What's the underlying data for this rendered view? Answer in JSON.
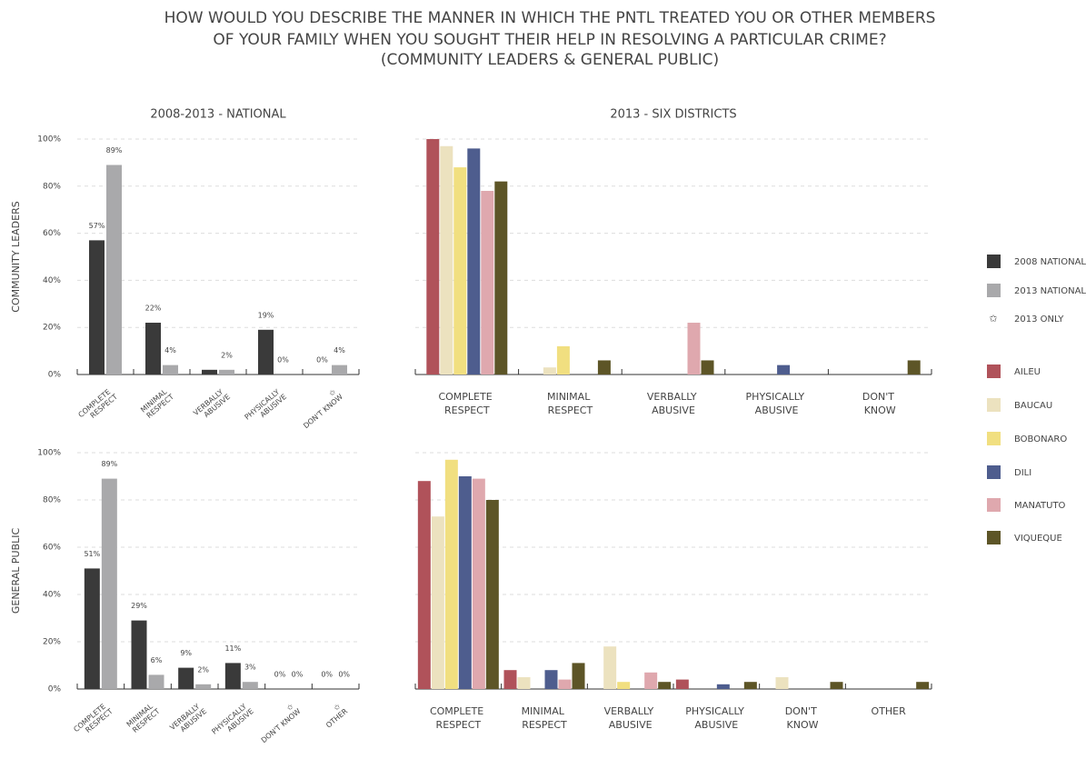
{
  "title": [
    "HOW WOULD YOU DESCRIBE THE MANNER IN WHICH THE PNTL TREATED YOU OR OTHER MEMBERS",
    "OF YOUR FAMILY WHEN YOU SOUGHT THEIR HELP IN RESOLVING A PARTICULAR CRIME?",
    "(COMMUNITY LEADERS & GENERAL PUBLIC)"
  ],
  "note_symbol": "✩",
  "note": "2013 ONLY",
  "chart_data": [
    {
      "type": "bar",
      "title": "2008-2013 - NATIONAL",
      "ylabel": "COMMUNITY LEADERS",
      "ytick_labels": true,
      "categories": [
        "COMPLETE RESPECT",
        "MINIMAL RESPECT",
        "VERBALLY ABUSIVE",
        "PHYSICALLY ABUSIVE",
        "✩ DON'T KNOW"
      ],
      "series": [
        {
          "name": "2008 NATIONAL",
          "color": "#3a3a3a",
          "values": [
            57,
            22,
            2,
            19,
            0
          ],
          "value_labels": [
            "57%",
            "22%",
            null,
            "19%",
            "0%"
          ]
        },
        {
          "name": "2013 NATIONAL",
          "color": "#a9a9ab",
          "values": [
            89,
            4,
            2,
            0,
            4
          ],
          "value_labels": [
            "89%",
            "4%",
            "2%",
            "0%",
            "4%"
          ]
        }
      ],
      "ylim": [
        0,
        100
      ],
      "yticks": [
        {
          "value": 0,
          "label": "0%"
        },
        {
          "value": 20,
          "label": "20%"
        },
        {
          "value": 40,
          "label": "40%"
        },
        {
          "value": 60,
          "label": "60%"
        },
        {
          "value": 80,
          "label": "80%"
        },
        {
          "value": 100,
          "label": "100%"
        }
      ],
      "grid": true
    },
    {
      "type": "bar",
      "title": "2013 - SIX DISTRICTS",
      "ytick_labels": false,
      "categories": [
        "COMPLETE RESPECT",
        "MINIMAL RESPECT",
        "VERBALLY ABUSIVE",
        "PHYSICALLY ABUSIVE",
        "DON'T KNOW"
      ],
      "series": [
        {
          "name": "AILEU",
          "color": "#b0525a",
          "values": [
            100,
            0,
            0,
            0,
            0
          ]
        },
        {
          "name": "BAUCAU",
          "color": "#ece2bf",
          "values": [
            97,
            3,
            0,
            0,
            0
          ]
        },
        {
          "name": "BOBONARO",
          "color": "#f1df80",
          "values": [
            88,
            12,
            0,
            0,
            0
          ]
        },
        {
          "name": "DILI",
          "color": "#4e5d8e",
          "values": [
            96,
            0,
            0,
            4,
            0
          ]
        },
        {
          "name": "MANATUTO",
          "color": "#dfa8ae",
          "values": [
            78,
            0,
            22,
            0,
            0
          ]
        },
        {
          "name": "VIQUEQUE",
          "color": "#5d5527",
          "values": [
            82,
            6,
            6,
            0,
            6
          ]
        }
      ],
      "ylim": [
        0,
        100
      ],
      "yticks": [
        0,
        20,
        40,
        60,
        80,
        100
      ],
      "grid": true
    },
    {
      "type": "bar",
      "ylabel": "GENERAL PUBLIC",
      "ytick_labels": true,
      "categories": [
        "COMPLETE RESPECT",
        "MINIMAL RESPECT",
        "VERBALLY ABUSIVE",
        "PHYSICALLY ABUSIVE",
        "✩ DON'T KNOW",
        "✩ OTHER"
      ],
      "series": [
        {
          "name": "2008 NATIONAL",
          "color": "#3a3a3a",
          "values": [
            51,
            29,
            9,
            11,
            0,
            0
          ],
          "value_labels": [
            "51%",
            "29%",
            "9%",
            "11%",
            "0%",
            "0%"
          ]
        },
        {
          "name": "2013 NATIONAL",
          "color": "#a9a9ab",
          "values": [
            89,
            6,
            2,
            3,
            0,
            0
          ],
          "value_labels": [
            "89%",
            "6%",
            "2%",
            "3%",
            "0%",
            "0%"
          ]
        }
      ],
      "ylim": [
        0,
        100
      ],
      "yticks": [
        {
          "value": 0,
          "label": "0%"
        },
        {
          "value": 20,
          "label": "20%"
        },
        {
          "value": 40,
          "label": "40%"
        },
        {
          "value": 60,
          "label": "60%"
        },
        {
          "value": 80,
          "label": "80%"
        },
        {
          "value": 100,
          "label": "100%"
        }
      ],
      "grid": true
    },
    {
      "type": "bar",
      "ytick_labels": false,
      "categories": [
        "COMPLETE RESPECT",
        "MINIMAL RESPECT",
        "VERBALLY ABUSIVE",
        "PHYSICALLY ABUSIVE",
        "DON'T KNOW",
        "OTHER"
      ],
      "series": [
        {
          "name": "AILEU",
          "color": "#b0525a",
          "values": [
            88,
            8,
            0,
            4,
            0,
            0
          ]
        },
        {
          "name": "BAUCAU",
          "color": "#ece2bf",
          "values": [
            73,
            5,
            18,
            0,
            5,
            0
          ]
        },
        {
          "name": "BOBONARO",
          "color": "#f1df80",
          "values": [
            97,
            0,
            3,
            0,
            0,
            0
          ]
        },
        {
          "name": "DILI",
          "color": "#4e5d8e",
          "values": [
            90,
            8,
            0,
            2,
            0,
            0
          ]
        },
        {
          "name": "MANATUTO",
          "color": "#dfa8ae",
          "values": [
            89,
            4,
            7,
            0,
            0,
            0
          ]
        },
        {
          "name": "VIQUEQUE",
          "color": "#5d5527",
          "values": [
            80,
            11,
            3,
            3,
            3,
            3
          ]
        }
      ],
      "ylim": [
        0,
        100
      ],
      "yticks": [
        0,
        20,
        40,
        60,
        80,
        100
      ],
      "grid": true
    }
  ]
}
